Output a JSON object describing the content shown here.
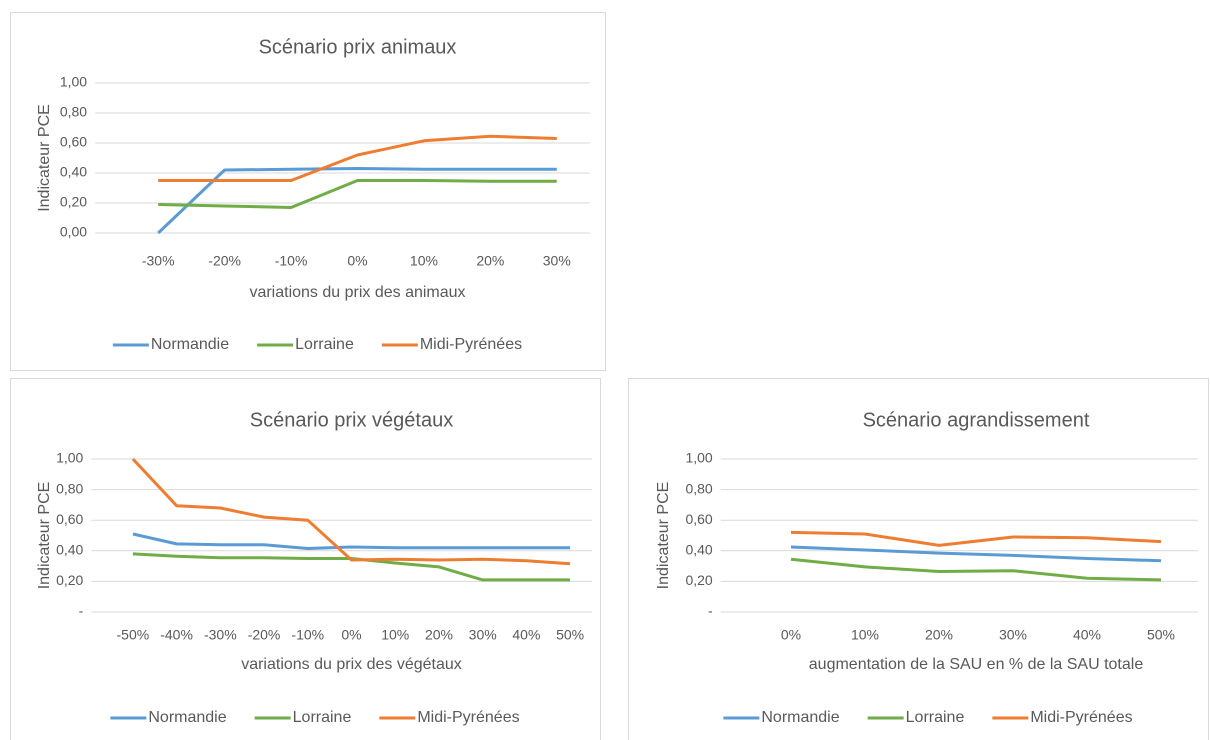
{
  "chart_data": [
    {
      "type": "line",
      "title": "Scénario prix animaux",
      "x_label": "variations du prix des animaux",
      "y_label": "Indicateur PCE",
      "categories": [
        "-30%",
        "-20%",
        "-10%",
        "0%",
        "10%",
        "20%",
        "30%"
      ],
      "series": [
        {
          "name": "Normandie",
          "color": "#5b9bd5",
          "values": [
            0,
            0.42,
            0.425,
            0.43,
            0.425,
            0.425,
            0.425
          ]
        },
        {
          "name": "Lorraine",
          "color": "#70ad47",
          "values": [
            0.19,
            0.18,
            0.17,
            0.35,
            0.35,
            0.345,
            0.345
          ]
        },
        {
          "name": "Midi-Pyrénées",
          "color": "#ed7d31",
          "values": [
            0.35,
            0.35,
            0.35,
            0.52,
            0.615,
            0.645,
            0.63
          ]
        }
      ],
      "ylim": [
        0,
        1
      ],
      "yticks": [
        {
          "value": 0,
          "label": "0,00"
        },
        {
          "value": 0.2,
          "label": "0,20"
        },
        {
          "value": 0.4,
          "label": "0,40"
        },
        {
          "value": 0.6,
          "label": "0,60"
        },
        {
          "value": 0.8,
          "label": "0,80"
        },
        {
          "value": 1,
          "label": "1,00"
        }
      ],
      "grid": true,
      "legend": "bottom"
    },
    {
      "type": "line",
      "title": "Scénario prix végétaux",
      "x_label": "variations du prix des végétaux",
      "y_label": "Indicateur PCE",
      "categories": [
        "-50%",
        "-40%",
        "-30%",
        "-20%",
        "-10%",
        "0%",
        "10%",
        "20%",
        "30%",
        "40%",
        "50%"
      ],
      "series": [
        {
          "name": "Normandie",
          "color": "#5b9bd5",
          "values": [
            0.51,
            0.445,
            0.44,
            0.44,
            0.415,
            0.425,
            0.42,
            0.42,
            0.42,
            0.42,
            0.42
          ]
        },
        {
          "name": "Lorraine",
          "color": "#70ad47",
          "values": [
            0.38,
            0.365,
            0.355,
            0.355,
            0.35,
            0.35,
            0.32,
            0.295,
            0.21,
            0.21,
            0.21
          ]
        },
        {
          "name": "Midi-Pyrénées",
          "color": "#ed7d31",
          "values": [
            1,
            0.695,
            0.68,
            0.62,
            0.6,
            0.34,
            0.345,
            0.34,
            0.345,
            0.335,
            0.315
          ]
        }
      ],
      "ylim": [
        0,
        1
      ],
      "yticks": [
        {
          "value": 0,
          "label": "-"
        },
        {
          "value": 0.2,
          "label": "0,20"
        },
        {
          "value": 0.4,
          "label": "0,40"
        },
        {
          "value": 0.6,
          "label": "0,60"
        },
        {
          "value": 0.8,
          "label": "0,80"
        },
        {
          "value": 1,
          "label": "1,00"
        }
      ],
      "grid": true,
      "legend": "bottom"
    },
    {
      "type": "line",
      "title": "Scénario agrandissement",
      "x_label": "augmentation de la SAU en % de la SAU totale",
      "y_label": "Indicateur PCE",
      "categories": [
        "0%",
        "10%",
        "20%",
        "30%",
        "40%",
        "50%"
      ],
      "series": [
        {
          "name": "Normandie",
          "color": "#5b9bd5",
          "values": [
            0.425,
            0.405,
            0.385,
            0.37,
            0.35,
            0.335
          ]
        },
        {
          "name": "Lorraine",
          "color": "#70ad47",
          "values": [
            0.345,
            0.295,
            0.265,
            0.27,
            0.22,
            0.21
          ]
        },
        {
          "name": "Midi-Pyrénées",
          "color": "#ed7d31",
          "values": [
            0.52,
            0.51,
            0.435,
            0.49,
            0.485,
            0.46
          ]
        }
      ],
      "ylim": [
        0,
        1
      ],
      "yticks": [
        {
          "value": 0,
          "label": "-"
        },
        {
          "value": 0.2,
          "label": "0,20"
        },
        {
          "value": 0.4,
          "label": "0,40"
        },
        {
          "value": 0.6,
          "label": "0,60"
        },
        {
          "value": 0.8,
          "label": "0,80"
        },
        {
          "value": 1,
          "label": "1,00"
        }
      ],
      "grid": true,
      "legend": "bottom"
    }
  ]
}
